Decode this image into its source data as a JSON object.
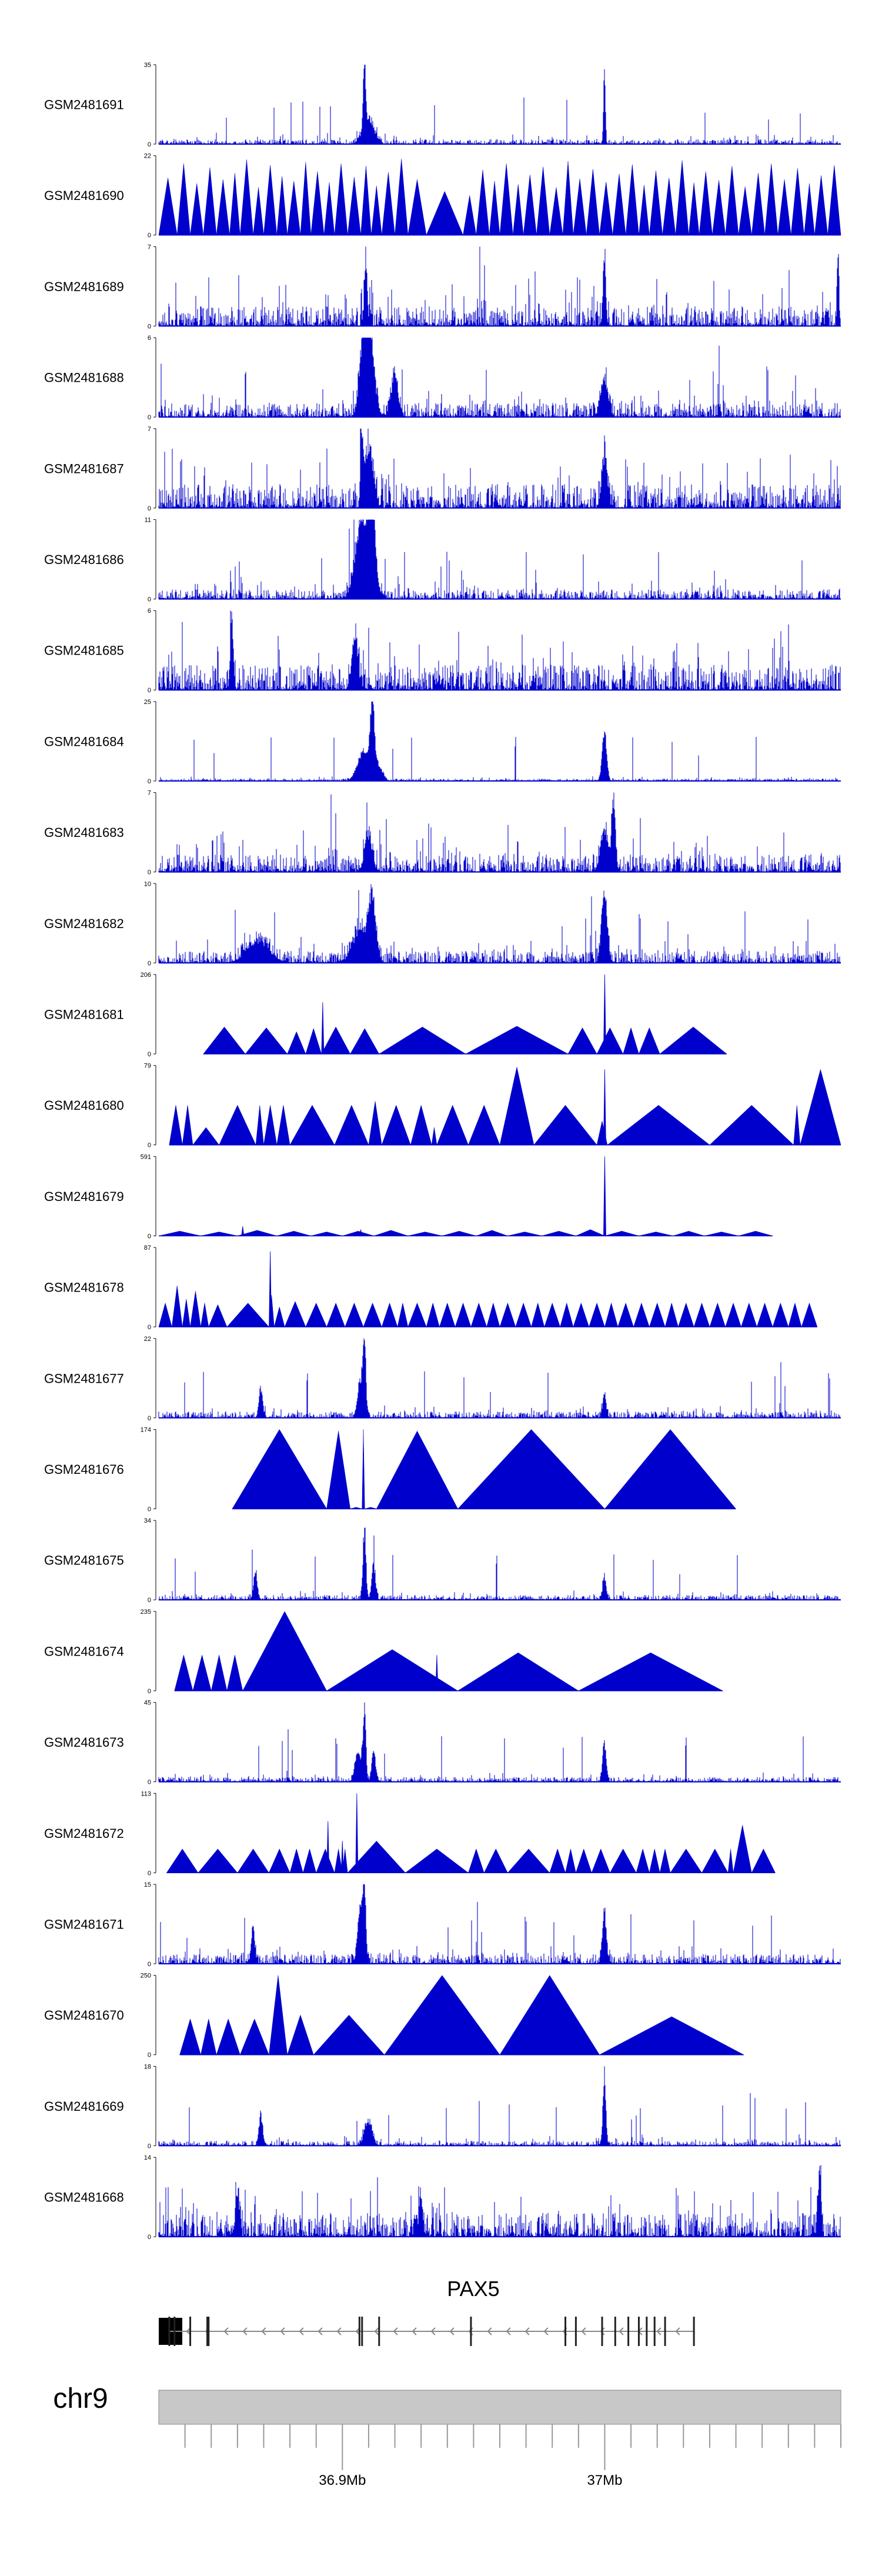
{
  "chart_data": {
    "type": "area",
    "title": "",
    "chromosome": "chr9",
    "region_mb": [
      36.83,
      37.09
    ],
    "fill_color": "#0000cc",
    "axis_ticks": [
      {
        "mb": 36.9,
        "label": "36.9Mb"
      },
      {
        "mb": 37.0,
        "label": "37Mb"
      }
    ],
    "gene": {
      "name": "PAX5",
      "strand": "-",
      "start_mb": 36.834,
      "end_mb": 37.034,
      "exons_mb": [
        36.834,
        36.836,
        36.842,
        36.849,
        36.8485,
        36.9065,
        36.9075,
        36.914,
        36.949,
        36.985,
        36.989,
        36.999,
        37.004,
        37.009,
        37.013,
        37.016,
        37.019,
        37.023,
        37.034
      ]
    },
    "tracks": [
      {
        "name": "GSM2481691",
        "ymax": 35,
        "kind": "noise",
        "base": 0.06,
        "peaks": [
          [
            36.9085,
            1.0,
            0.0006
          ],
          [
            37.0,
            1.0,
            0.0005
          ],
          [
            36.91,
            0.35,
            0.003
          ]
        ]
      },
      {
        "name": "GSM2481690",
        "ymax": 22,
        "kind": "triangles",
        "starts": [
          36.83,
          36.837,
          36.842,
          36.847,
          36.852,
          36.857,
          36.861,
          36.866,
          36.87,
          36.875,
          36.879,
          36.884,
          36.888,
          36.893,
          36.897,
          36.902,
          36.907,
          36.911,
          36.915,
          36.92,
          36.925,
          36.932,
          36.946,
          36.951,
          36.956,
          36.96,
          36.965,
          36.969,
          36.974,
          36.979,
          36.984,
          36.988,
          36.993,
          36.998,
          37.003,
          37.008,
          37.013,
          37.017,
          37.022,
          37.027,
          37.032,
          37.036,
          37.041,
          37.046,
          37.051,
          37.056,
          37.061,
          37.066,
          37.071,
          37.076,
          37.08,
          37.085,
          37.09
        ],
        "heights": [
          0.72,
          0.9,
          0.65,
          0.85,
          0.7,
          0.78,
          0.95,
          0.6,
          0.88,
          0.74,
          0.68,
          0.92,
          0.8,
          0.66,
          0.9,
          0.73,
          0.87,
          0.62,
          0.79,
          0.96,
          0.7,
          0.55,
          0.5,
          0.82,
          0.68,
          0.9,
          0.64,
          0.76,
          0.86,
          0.6,
          0.93,
          0.71,
          0.83,
          0.67,
          0.77,
          0.89,
          0.63,
          0.81,
          0.72,
          0.94,
          0.66,
          0.8,
          0.69,
          0.87,
          0.61,
          0.78,
          0.9,
          0.7,
          0.84,
          0.65,
          0.75,
          0.88
        ]
      },
      {
        "name": "GSM2481689",
        "ymax": 7,
        "kind": "noise",
        "base": 0.25,
        "peaks": [
          [
            36.909,
            0.85,
            0.0008
          ],
          [
            37.0,
            0.8,
            0.0008
          ],
          [
            37.089,
            1.0,
            0.0005
          ]
        ]
      },
      {
        "name": "GSM2481688",
        "ymax": 6,
        "kind": "noise",
        "base": 0.18,
        "peaks": [
          [
            36.9105,
            1.0,
            0.0025
          ],
          [
            36.908,
            0.9,
            0.002
          ],
          [
            36.92,
            0.5,
            0.002
          ],
          [
            37.0,
            0.45,
            0.002
          ]
        ]
      },
      {
        "name": "GSM2481687",
        "ymax": 7,
        "kind": "noise",
        "base": 0.3,
        "peaks": [
          [
            36.9075,
            1.0,
            0.0006
          ],
          [
            36.9105,
            0.85,
            0.002
          ],
          [
            37.0,
            0.7,
            0.0015
          ]
        ]
      },
      {
        "name": "GSM2481686",
        "ymax": 11,
        "kind": "noise",
        "base": 0.12,
        "peaks": [
          [
            36.9115,
            1.0,
            0.0015
          ],
          [
            36.907,
            0.7,
            0.003
          ],
          [
            36.9095,
            0.55,
            0.004
          ]
        ]
      },
      {
        "name": "GSM2481685",
        "ymax": 6,
        "kind": "noise",
        "base": 0.32,
        "peaks": [
          [
            36.858,
            1.0,
            0.0008
          ],
          [
            36.905,
            0.75,
            0.0015
          ]
        ]
      },
      {
        "name": "GSM2481684",
        "ymax": 25,
        "kind": "noise",
        "base": 0.03,
        "peaks": [
          [
            36.9115,
            1.0,
            0.0012
          ],
          [
            36.908,
            0.4,
            0.003
          ],
          [
            37.0,
            0.7,
            0.0012
          ],
          [
            36.914,
            0.2,
            0.002
          ]
        ]
      },
      {
        "name": "GSM2481683",
        "ymax": 7,
        "kind": "noise",
        "base": 0.22,
        "peaks": [
          [
            37.0035,
            1.0,
            0.001
          ],
          [
            37.0,
            0.6,
            0.002
          ],
          [
            36.91,
            0.5,
            0.002
          ]
        ]
      },
      {
        "name": "GSM2481682",
        "ymax": 10,
        "kind": "noise",
        "base": 0.15,
        "peaks": [
          [
            37.0,
            1.0,
            0.0015
          ],
          [
            36.9115,
            0.8,
            0.002
          ],
          [
            36.907,
            0.45,
            0.004
          ],
          [
            36.868,
            0.3,
            0.006
          ]
        ]
      },
      {
        "name": "GSM2481681",
        "ymax": 206,
        "kind": "triangles",
        "starts": [
          36.847,
          36.863,
          36.879,
          36.886,
          36.892,
          36.903,
          36.914,
          36.947,
          36.986,
          36.997,
          37.007,
          37.013,
          37.021,
          37.0465
        ],
        "heights": [
          0.34,
          0.33,
          0.28,
          0.32,
          0.34,
          0.32,
          0.34,
          0.35,
          0.33,
          0.33,
          0.33,
          0.33,
          0.34
        ],
        "spikes": [
          [
            36.8925,
            0.65
          ],
          [
            37.0,
            1.0
          ]
        ]
      },
      {
        "name": "GSM2481680",
        "ymax": 79,
        "kind": "triangles",
        "starts": [
          36.834,
          36.839,
          36.843,
          36.853,
          36.867,
          36.87,
          36.875,
          36.88,
          36.897,
          36.91,
          36.915,
          36.926,
          36.934,
          36.936,
          36.948,
          36.96,
          36.973,
          36.997,
          37.001,
          37.04,
          37.072,
          37.0745,
          37.09
        ],
        "heights": [
          0.5,
          0.5,
          0.22,
          0.5,
          0.5,
          0.5,
          0.5,
          0.5,
          0.5,
          0.55,
          0.5,
          0.5,
          0.22,
          0.5,
          0.5,
          0.98,
          0.5,
          0.3,
          0.5,
          0.5,
          0.5,
          0.95
        ],
        "spikes": [
          [
            37.0,
            0.95
          ]
        ]
      },
      {
        "name": "GSM2481679",
        "ymax": 591,
        "kind": "triangles",
        "starts": [
          36.83,
          36.846,
          36.86,
          36.875,
          36.888,
          36.9,
          36.912,
          36.925,
          36.938,
          36.951,
          36.963,
          36.976,
          36.989,
          37.0,
          37.013,
          37.026,
          37.038,
          37.051,
          37.064
        ],
        "heights": [
          0.06,
          0.05,
          0.07,
          0.06,
          0.05,
          0.06,
          0.07,
          0.05,
          0.06,
          0.07,
          0.05,
          0.06,
          0.08,
          0.06,
          0.05,
          0.06,
          0.05,
          0.06
        ],
        "spikes": [
          [
            37.0,
            1.0
          ],
          [
            36.907,
            0.08
          ],
          [
            36.862,
            0.12
          ]
        ]
      },
      {
        "name": "GSM2481678",
        "ymax": 87,
        "kind": "triangles",
        "starts": [
          36.83,
          36.835,
          36.839,
          36.842,
          36.846,
          36.849,
          36.856,
          36.872,
          36.874,
          36.878,
          36.886,
          36.894,
          36.901,
          36.908,
          36.915,
          36.921,
          36.925,
          36.932,
          36.937,
          36.943,
          36.949,
          36.955,
          36.96,
          36.966,
          36.972,
          36.977,
          36.983,
          36.988,
          36.994,
          37.0,
          37.005,
          37.011,
          37.017,
          37.023,
          37.028,
          37.034,
          37.04,
          37.046,
          37.052,
          37.058,
          37.064,
          37.07,
          37.075,
          37.081
        ],
        "heights": [
          0.3,
          0.52,
          0.35,
          0.45,
          0.3,
          0.28,
          0.3,
          0.4,
          0.25,
          0.32,
          0.3,
          0.3,
          0.3,
          0.3,
          0.3,
          0.3,
          0.3,
          0.3,
          0.3,
          0.3,
          0.3,
          0.3,
          0.3,
          0.3,
          0.3,
          0.3,
          0.3,
          0.3,
          0.3,
          0.3,
          0.3,
          0.3,
          0.3,
          0.3,
          0.3,
          0.3,
          0.3,
          0.3,
          0.3,
          0.3,
          0.3,
          0.3,
          0.3
        ],
        "spikes": [
          [
            36.8725,
            0.95
          ]
        ]
      },
      {
        "name": "GSM2481677",
        "ymax": 22,
        "kind": "noise",
        "base": 0.08,
        "peaks": [
          [
            36.9085,
            1.0,
            0.0008
          ],
          [
            36.907,
            0.5,
            0.0015
          ],
          [
            36.869,
            0.4,
            0.001
          ],
          [
            37.0,
            0.3,
            0.001
          ]
        ]
      },
      {
        "name": "GSM2481676",
        "ymax": 174,
        "kind": "triangles",
        "starts": [
          36.858,
          36.894,
          36.903,
          36.9075,
          36.9085,
          36.913,
          36.944,
          37.0,
          37.05
        ],
        "heights": [
          1.0,
          0.98,
          0.02,
          1.0,
          0.02,
          0.98,
          1.0,
          1.0
        ],
        "spikes": []
      },
      {
        "name": "GSM2481675",
        "ymax": 34,
        "kind": "noise",
        "base": 0.06,
        "peaks": [
          [
            36.9085,
            1.0,
            0.0008
          ],
          [
            36.912,
            0.5,
            0.001
          ],
          [
            36.867,
            0.35,
            0.001
          ],
          [
            37.0,
            0.3,
            0.001
          ]
        ]
      },
      {
        "name": "GSM2481674",
        "ymax": 235,
        "kind": "triangles",
        "starts": [
          36.836,
          36.843,
          36.85,
          36.856,
          36.862,
          36.894,
          36.944,
          36.99,
          37.045
        ],
        "heights": [
          0.45,
          0.45,
          0.45,
          0.45,
          1.0,
          0.52,
          0.48,
          0.48
        ],
        "spikes": [
          [
            36.936,
            0.45
          ]
        ]
      },
      {
        "name": "GSM2481673",
        "ymax": 45,
        "kind": "noise",
        "base": 0.06,
        "peaks": [
          [
            36.9085,
            1.0,
            0.0008
          ],
          [
            36.906,
            0.45,
            0.0015
          ],
          [
            36.912,
            0.4,
            0.001
          ],
          [
            37.0,
            0.55,
            0.001
          ]
        ]
      },
      {
        "name": "GSM2481672",
        "ymax": 113,
        "kind": "triangles",
        "starts": [
          36.833,
          36.845,
          36.86,
          36.872,
          36.88,
          36.885,
          36.89,
          36.897,
          36.9,
          36.902,
          36.924,
          36.948,
          36.954,
          36.963,
          36.979,
          36.985,
          36.989,
          36.995,
          37.002,
          37.012,
          37.017,
          37.021,
          37.025,
          37.037,
          37.047,
          37.049,
          37.056,
          37.065
        ],
        "heights": [
          0.3,
          0.3,
          0.3,
          0.3,
          0.3,
          0.3,
          0.3,
          0.3,
          0.3,
          0.4,
          0.3,
          0.3,
          0.3,
          0.3,
          0.3,
          0.3,
          0.3,
          0.3,
          0.3,
          0.3,
          0.3,
          0.3,
          0.3,
          0.3,
          0.3,
          0.6
        ],
        "spikes": [
          [
            36.9055,
            1.0
          ],
          [
            36.8945,
            0.65
          ],
          [
            36.9,
            0.4
          ]
        ]
      },
      {
        "name": "GSM2481671",
        "ymax": 15,
        "kind": "noise",
        "base": 0.12,
        "peaks": [
          [
            36.9085,
            1.0,
            0.0008
          ],
          [
            36.907,
            0.7,
            0.0015
          ],
          [
            37.0,
            0.75,
            0.001
          ],
          [
            36.866,
            0.45,
            0.001
          ]
        ]
      },
      {
        "name": "GSM2481670",
        "ymax": 250,
        "kind": "triangles",
        "starts": [
          36.838,
          36.846,
          36.852,
          36.861,
          36.872,
          36.879,
          36.889,
          36.916,
          36.96,
          36.998,
          37.053
        ],
        "heights": [
          0.45,
          0.45,
          0.45,
          0.45,
          1.0,
          0.5,
          0.5,
          1.0,
          1.0,
          0.48
        ],
        "spikes": []
      },
      {
        "name": "GSM2481669",
        "ymax": 18,
        "kind": "noise",
        "base": 0.06,
        "peaks": [
          [
            37.0,
            1.0,
            0.0008
          ],
          [
            36.869,
            0.4,
            0.001
          ],
          [
            36.91,
            0.35,
            0.002
          ]
        ]
      },
      {
        "name": "GSM2481668",
        "ymax": 14,
        "kind": "noise",
        "base": 0.3,
        "peaks": [
          [
            37.082,
            1.0,
            0.0008
          ],
          [
            36.86,
            0.6,
            0.001
          ],
          [
            36.93,
            0.55,
            0.001
          ]
        ]
      }
    ]
  }
}
